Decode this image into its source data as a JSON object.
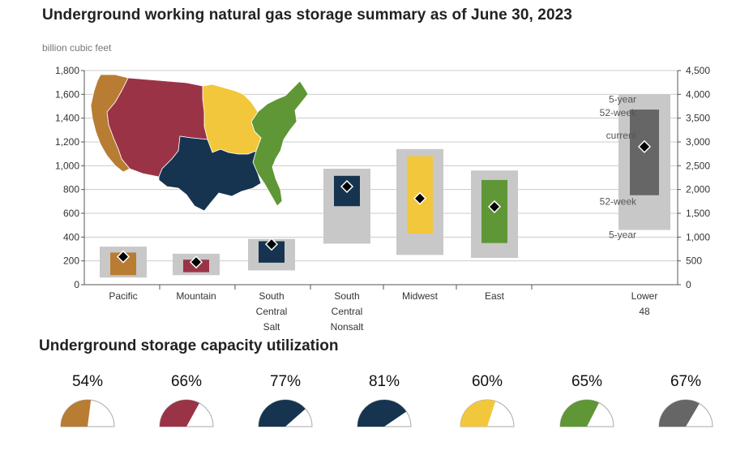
{
  "title": "Underground working natural gas storage summary as of June 30, 2023",
  "unit_label": "billion cubic feet",
  "subtitle": "Underground storage capacity utilization",
  "chart_data": {
    "type": "range-bar",
    "title": "Underground working natural gas storage summary as of June 30, 2023",
    "ylabel": "billion cubic feet",
    "left_axis": {
      "ylim": [
        0,
        1800
      ],
      "ticks": [
        "0",
        "200",
        "400",
        "600",
        "800",
        "1,000",
        "1,200",
        "1,400",
        "1,600",
        "1,800"
      ]
    },
    "right_axis": {
      "ylim": [
        0,
        4500
      ],
      "ticks": [
        "0",
        "500",
        "1,000",
        "1,500",
        "2,000",
        "2,500",
        "3,000",
        "3,500",
        "4,000",
        "4,500"
      ]
    },
    "grid": true,
    "categories": [
      {
        "id": "pacific",
        "lines": [
          "Pacific"
        ],
        "color": "#b87c33",
        "axis": "left",
        "five_year": [
          60,
          320
        ],
        "fifty_two_week": [
          80,
          270
        ],
        "current": 235
      },
      {
        "id": "mountain",
        "lines": [
          "Mountain"
        ],
        "color": "#9b3346",
        "axis": "left",
        "five_year": [
          80,
          260
        ],
        "fifty_two_week": [
          105,
          210
        ],
        "current": 190
      },
      {
        "id": "south-central-salt",
        "lines": [
          "South",
          "Central",
          "Salt"
        ],
        "color": "#16344f",
        "axis": "left",
        "five_year": [
          120,
          385
        ],
        "fifty_two_week": [
          185,
          365
        ],
        "current": 340
      },
      {
        "id": "south-central-nonsalt",
        "lines": [
          "South",
          "Central",
          "Nonsalt"
        ],
        "color": "#16344f",
        "axis": "left",
        "five_year": [
          345,
          975
        ],
        "fifty_two_week": [
          660,
          915
        ],
        "current": 825
      },
      {
        "id": "midwest",
        "lines": [
          "Midwest"
        ],
        "color": "#f2c73b",
        "axis": "left",
        "five_year": [
          250,
          1140
        ],
        "fifty_two_week": [
          430,
          1080
        ],
        "current": 725
      },
      {
        "id": "east",
        "lines": [
          "East"
        ],
        "color": "#5f9636",
        "axis": "left",
        "five_year": [
          225,
          960
        ],
        "fifty_two_week": [
          350,
          880
        ],
        "current": 655
      },
      {
        "id": "lower-48",
        "lines": [
          "Lower",
          "48"
        ],
        "color": "#666666",
        "axis": "right",
        "five_year": [
          1150,
          4000
        ],
        "fifty_two_week": [
          1880,
          3680
        ],
        "current": 2900
      }
    ],
    "range_labels": [
      "5-year",
      "52-week",
      "current",
      "52-week",
      "5-year"
    ],
    "utilization": [
      {
        "label": "54%",
        "value": 54,
        "color": "#b87c33"
      },
      {
        "label": "66%",
        "value": 66,
        "color": "#9b3346"
      },
      {
        "label": "77%",
        "value": 77,
        "color": "#16344f"
      },
      {
        "label": "81%",
        "value": 81,
        "color": "#16344f"
      },
      {
        "label": "60%",
        "value": 60,
        "color": "#f2c73b"
      },
      {
        "label": "65%",
        "value": 65,
        "color": "#5f9636"
      },
      {
        "label": "67%",
        "value": 67,
        "color": "#666666"
      }
    ]
  },
  "colors": {
    "five_year_range": "#c8c8c8",
    "grid": "#cccccc",
    "axis": "#555555",
    "tick_text": "#333333",
    "map_pacific": "#b87c33",
    "map_mountain": "#9b3346",
    "map_south_central": "#16344f",
    "map_midwest": "#f2c73b",
    "map_east": "#5f9636"
  }
}
